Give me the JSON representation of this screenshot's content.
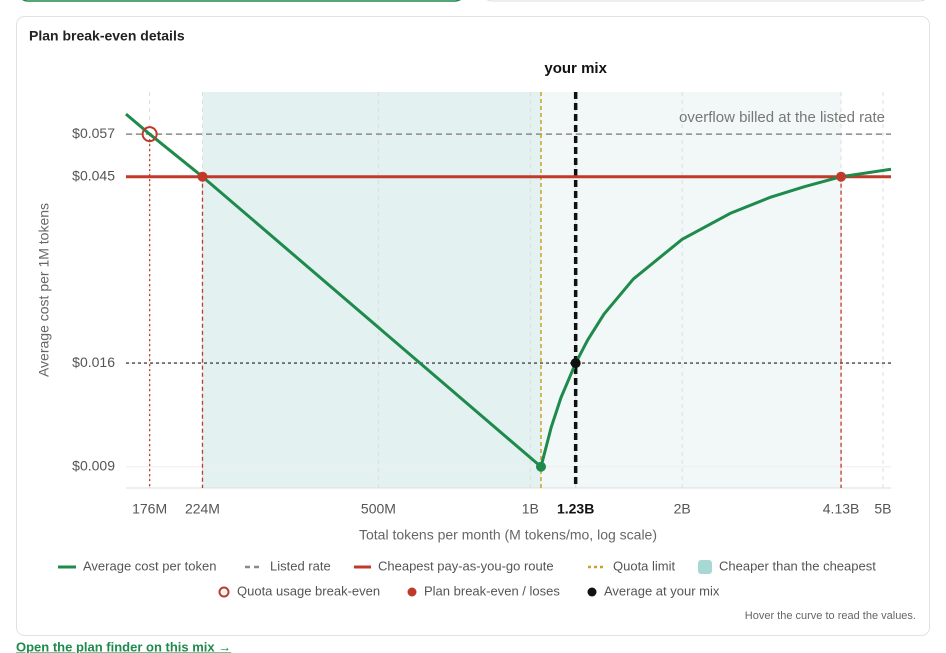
{
  "chart_data": {
    "type": "line",
    "title": "Plan break-even details",
    "x_label": "Total tokens per month (M tokens/mo, log scale)",
    "y_label": "Average cost per 1M tokens",
    "xscale": "log",
    "yscale": "log",
    "xlim": [
      158,
      5187
    ],
    "ylim": [
      0.008,
      0.072
    ],
    "xticks": [
      {
        "value": 176,
        "label": "176M"
      },
      {
        "value": 224,
        "label": "224M"
      },
      {
        "value": 500,
        "label": "500M"
      },
      {
        "value": 1000,
        "label": "1B"
      },
      {
        "value": 1230,
        "label": "1.23B"
      },
      {
        "value": 2000,
        "label": "2B"
      },
      {
        "value": 4130,
        "label": "4.13B"
      },
      {
        "value": 5000,
        "label": "5B"
      }
    ],
    "yticks": [
      {
        "value": 0.009,
        "label": "$0.009"
      },
      {
        "value": 0.016,
        "label": "$0.016"
      },
      {
        "value": 0.045,
        "label": "$0.045"
      },
      {
        "value": 0.057,
        "label": "$0.057"
      }
    ],
    "grid": true,
    "series": [
      {
        "name": "Average cost per token",
        "color": "#1e8a4c",
        "x": [
          158,
          176,
          224,
          1050,
          1100,
          1150,
          1230,
          1300,
          1400,
          1600,
          2000,
          2500,
          3000,
          3500,
          4130,
          5187
        ],
        "values": [
          0.0637,
          0.057,
          0.045,
          0.009,
          0.0112,
          0.0132,
          0.016,
          0.0182,
          0.021,
          0.0255,
          0.0318,
          0.0368,
          0.0402,
          0.0426,
          0.045,
          0.0469
        ]
      }
    ],
    "listed_rate": {
      "name": "Listed rate",
      "value": 0.057,
      "color": "#8a8a8a"
    },
    "cheapest_route": {
      "name": "Cheapest pay-as-you-go route",
      "value": 0.045,
      "color": "#c0392b"
    },
    "quota_limit": {
      "name": "Quota limit",
      "x": 1050,
      "color": "#c9a227"
    },
    "cheaper_region": {
      "name": "Cheaper than the cheapest",
      "x": [
        224,
        1050,
        4130
      ],
      "colors": [
        "#e3f2f1",
        "#f1f8f7"
      ]
    },
    "quota_breakeven": {
      "name": "Quota usage break-even",
      "x": 176,
      "value": 0.057,
      "color": "#c0392b"
    },
    "plan_breakeven": {
      "name": "Plan break-even / loses",
      "x": [
        224,
        4130
      ],
      "values": [
        0.045,
        0.045
      ],
      "color": "#c0392b"
    },
    "your_mix": {
      "name": "Average at your mix",
      "label": "your mix",
      "x": 1230,
      "value": 0.016,
      "color": "#111111"
    },
    "annotation": "overflow billed at the listed rate",
    "note": "Hover the curve to read the values."
  },
  "link": "Open the plan finder on this mix →"
}
